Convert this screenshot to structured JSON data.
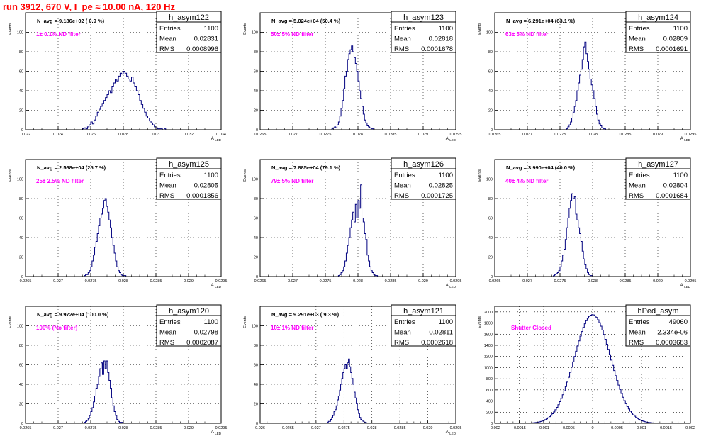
{
  "page_title": "run 3912,   670 V, I_pe ≈ 10.00 nA, 120 Hz",
  "stats_labels": {
    "entries": "Entries",
    "mean": "Mean",
    "rms": "RMS"
  },
  "colors": {
    "hist": "#00007f",
    "annotation": "#ff00ff",
    "title": "#ff0000",
    "frame": "#000000"
  },
  "chart_data": [
    {
      "type": "bar",
      "name": "h_asym122",
      "navg": "N_avg = 9.186e+02 ( 0.9 %)",
      "note": "1± 0.1% ND filter",
      "entries": "1100",
      "mean": "0.02831",
      "rms": "0.0008996",
      "ylabel": "Events",
      "xlabel": "A_LED",
      "xlim": [
        0.022,
        0.034
      ],
      "ylim": [
        0,
        120
      ],
      "xticks": [
        "0.022",
        "0.024",
        "0.026",
        "0.028",
        "0.03",
        "0.032",
        "0.034"
      ],
      "yticks": [
        "0",
        "20",
        "40",
        "60",
        "80",
        "100"
      ],
      "bins_start": 0.0255,
      "bin_width": 0.0001,
      "values": [
        1,
        2,
        1,
        3,
        5,
        8,
        6,
        10,
        14,
        18,
        21,
        24,
        27,
        30,
        33,
        36,
        40,
        38,
        44,
        48,
        52,
        50,
        55,
        58,
        57,
        60,
        58,
        55,
        52,
        50,
        54,
        48,
        44,
        40,
        36,
        30,
        26,
        22,
        18,
        14,
        12,
        9,
        7,
        5,
        3,
        2,
        1,
        1,
        1,
        0,
        1
      ]
    },
    {
      "type": "bar",
      "name": "h_asym123",
      "navg": "N_avg = 5.024e+04 (50.4 %)",
      "note": "50± 5% ND filter",
      "entries": "1100",
      "mean": "0.02818",
      "rms": "0.0001678",
      "ylabel": "Events",
      "xlabel": "A_LED",
      "xlim": [
        0.0265,
        0.0295
      ],
      "ylim": [
        0,
        120
      ],
      "xticks": [
        "0.0265",
        "0.027",
        "0.0275",
        "0.028",
        "0.0285",
        "0.029",
        "0.0295"
      ],
      "yticks": [
        "0",
        "20",
        "40",
        "60",
        "80",
        "100"
      ],
      "bins_start": 0.0276,
      "bin_width": 2e-05,
      "values": [
        1,
        2,
        3,
        2,
        5,
        8,
        14,
        22,
        30,
        42,
        55,
        60,
        72,
        78,
        82,
        86,
        80,
        74,
        68,
        60,
        50,
        40,
        32,
        24,
        16,
        10,
        7,
        4,
        3,
        2,
        1,
        1
      ]
    },
    {
      "type": "bar",
      "name": "h_asym124",
      "navg": "N_avg = 6.291e+04 (63.1 %)",
      "note": "63± 5% ND filter",
      "entries": "1100",
      "mean": "0.02809",
      "rms": "0.0001691",
      "ylabel": "Events",
      "xlabel": "A_LED",
      "xlim": [
        0.0265,
        0.0295
      ],
      "ylim": [
        0,
        120
      ],
      "xticks": [
        "0.0265",
        "0.027",
        "0.0275",
        "0.028",
        "0.0285",
        "0.029",
        "0.0295"
      ],
      "yticks": [
        "0",
        "20",
        "40",
        "60",
        "80",
        "100"
      ],
      "bins_start": 0.0276,
      "bin_width": 2e-05,
      "values": [
        1,
        3,
        5,
        8,
        12,
        18,
        24,
        30,
        40,
        48,
        56,
        62,
        72,
        85,
        90,
        78,
        70,
        62,
        52,
        46,
        40,
        32,
        24,
        16,
        10,
        6,
        4,
        2,
        1,
        1
      ]
    },
    {
      "type": "bar",
      "name": "h_asym125",
      "navg": "N_avg = 2.568e+04 (25.7 %)",
      "note": "25± 2.5% ND filter",
      "entries": "1100",
      "mean": "0.02805",
      "rms": "0.0001856",
      "ylabel": "Events",
      "xlabel": "A_LED",
      "xlim": [
        0.0265,
        0.0295
      ],
      "ylim": [
        0,
        120
      ],
      "xticks": [
        "0.0265",
        "0.027",
        "0.0275",
        "0.028",
        "0.0285",
        "0.029",
        "0.0295"
      ],
      "yticks": [
        "0",
        "20",
        "40",
        "60",
        "80",
        "100"
      ],
      "bins_start": 0.0274,
      "bin_width": 2e-05,
      "values": [
        1,
        2,
        2,
        4,
        6,
        10,
        16,
        22,
        30,
        36,
        44,
        52,
        60,
        64,
        70,
        78,
        80,
        72,
        66,
        58,
        50,
        40,
        32,
        24,
        16,
        10,
        6,
        4,
        2,
        1,
        1,
        1
      ]
    },
    {
      "type": "bar",
      "name": "h_asym126",
      "navg": "N_avg = 7.885e+04 (79.1 %)",
      "note": "79± 5% ND filter",
      "entries": "1100",
      "mean": "0.02825",
      "rms": "0.0001725",
      "ylabel": "Events",
      "xlabel": "A_LED",
      "xlim": [
        0.0265,
        0.0295
      ],
      "ylim": [
        0,
        120
      ],
      "xticks": [
        "0.0265",
        "0.027",
        "0.0275",
        "0.028",
        "0.0285",
        "0.029",
        "0.0295"
      ],
      "yticks": [
        "0",
        "20",
        "40",
        "60",
        "80",
        "100"
      ],
      "bins_start": 0.0277,
      "bin_width": 2e-05,
      "values": [
        1,
        2,
        4,
        6,
        10,
        16,
        24,
        32,
        40,
        50,
        58,
        66,
        56,
        74,
        60,
        78,
        70,
        94,
        60,
        56,
        44,
        38,
        22,
        16,
        10,
        6,
        4,
        2,
        1,
        1
      ]
    },
    {
      "type": "bar",
      "name": "h_asym127",
      "navg": "N_avg = 3.990e+04 (40.0 %)",
      "note": "40± 4% ND filter",
      "entries": "1100",
      "mean": "0.02804",
      "rms": "0.0001684",
      "ylabel": "Events",
      "xlabel": "A_LED",
      "xlim": [
        0.0265,
        0.0295
      ],
      "ylim": [
        0,
        120
      ],
      "xticks": [
        "0.0265",
        "0.027",
        "0.0275",
        "0.028",
        "0.0285",
        "0.029",
        "0.0295"
      ],
      "yticks": [
        "0",
        "20",
        "40",
        "60",
        "80",
        "100"
      ],
      "bins_start": 0.0274,
      "bin_width": 2e-05,
      "values": [
        1,
        2,
        3,
        4,
        6,
        10,
        16,
        22,
        28,
        38,
        50,
        60,
        70,
        78,
        85,
        80,
        82,
        64,
        58,
        50,
        44,
        36,
        26,
        18,
        12,
        8,
        4,
        2,
        1,
        1
      ]
    },
    {
      "type": "bar",
      "name": "h_asym120",
      "navg": "N_avg = 9.972e+04 (100.0 %)",
      "note": "100% (No filter)",
      "entries": "1100",
      "mean": "0.02798",
      "rms": "0.0002087",
      "ylabel": "Events",
      "xlabel": "A_LED",
      "xlim": [
        0.0265,
        0.0295
      ],
      "ylim": [
        0,
        120
      ],
      "xticks": [
        "0.0265",
        "0.027",
        "0.0275",
        "0.028",
        "0.0285",
        "0.029",
        "0.0295"
      ],
      "yticks": [
        "0",
        "20",
        "40",
        "60",
        "80",
        "100"
      ],
      "bins_start": 0.0274,
      "bin_width": 2e-05,
      "values": [
        1,
        2,
        3,
        5,
        8,
        12,
        16,
        22,
        28,
        36,
        40,
        48,
        56,
        62,
        50,
        64,
        56,
        64,
        52,
        44,
        36,
        26,
        18,
        12,
        8,
        4,
        2,
        1,
        1,
        1
      ]
    },
    {
      "type": "bar",
      "name": "h_asym121",
      "navg": "N_avg = 9.291e+03 ( 9.3 %)",
      "note": "10± 1% ND filter",
      "entries": "1100",
      "mean": "0.02811",
      "rms": "0.0002618",
      "ylabel": "Events",
      "xlabel": "A_LED",
      "xlim": [
        0.026,
        0.0295
      ],
      "ylim": [
        0,
        120
      ],
      "xticks": [
        "0.026",
        "0.0265",
        "0.027",
        "0.0275",
        "0.028",
        "0.0285",
        "0.029",
        "0.0295"
      ],
      "yticks": [
        "0",
        "20",
        "40",
        "60",
        "80",
        "100"
      ],
      "bins_start": 0.0272,
      "bin_width": 2e-05,
      "values": [
        1,
        2,
        2,
        4,
        6,
        8,
        12,
        14,
        18,
        24,
        28,
        34,
        40,
        46,
        52,
        56,
        60,
        56,
        62,
        66,
        58,
        52,
        46,
        40,
        32,
        26,
        20,
        14,
        10,
        6,
        4,
        3,
        2,
        1,
        1
      ]
    },
    {
      "type": "bar",
      "name": "hPed_asym",
      "navg": "",
      "note": "Shutter Closed",
      "entries": "49060",
      "mean": "2.334e-06",
      "rms": "0.0003683",
      "ylabel": "Events",
      "xlabel": "",
      "xlim": [
        -0.002,
        0.002
      ],
      "ylim": [
        0,
        2100
      ],
      "xticks": [
        "-0.002",
        "-0.0015",
        "-0.001",
        "-0.0005",
        "0",
        "0.0005",
        "0.001",
        "0.0015",
        "0.002"
      ],
      "yticks": [
        "0",
        "200",
        "400",
        "600",
        "800",
        "1000",
        "1200",
        "1400",
        "1600",
        "1800",
        "2000"
      ],
      "bins_start": -0.00125,
      "bin_width": 3e-05
    }
  ]
}
